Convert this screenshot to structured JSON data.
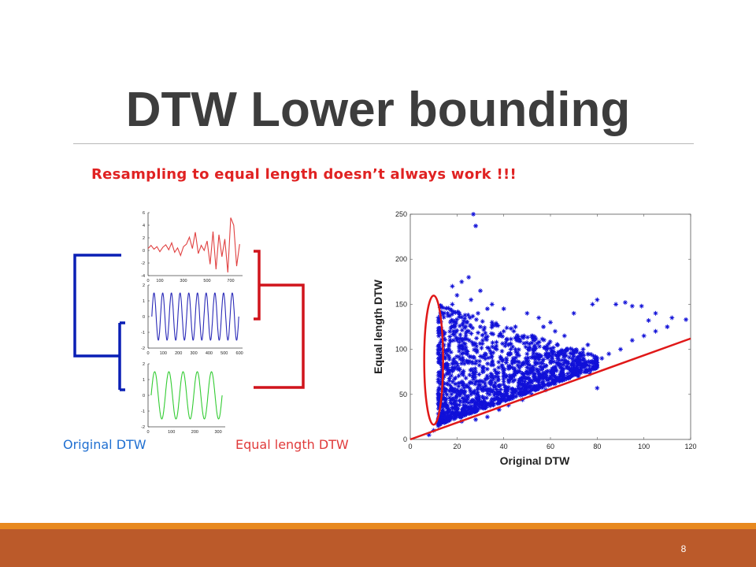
{
  "slide": {
    "title": "DTW Lower bounding",
    "subtitle": "Resampling to equal length doesn’t always work !!!",
    "page_number": "8"
  },
  "dendrogram": {
    "left_label": "Original DTW",
    "right_label": "Equal length DTW",
    "colors": {
      "left": "#0a1fb5",
      "right": "#d0141c"
    }
  },
  "chart_data": [
    {
      "type": "line",
      "color": "#e04040",
      "x_ticks": [
        "0",
        "100",
        "300",
        "500",
        "700"
      ],
      "y_ticks": [
        "6",
        "4",
        "2",
        "0",
        "-2",
        "-4"
      ],
      "xlim": [
        0,
        800
      ],
      "ylim": [
        -4,
        6
      ],
      "x": [
        0,
        25,
        50,
        75,
        100,
        125,
        150,
        175,
        200,
        225,
        250,
        275,
        300,
        325,
        350,
        375,
        400,
        425,
        450,
        475,
        500,
        525,
        550,
        575,
        600,
        625,
        650,
        675,
        700,
        725,
        750,
        775
      ],
      "y": [
        0.3,
        0.8,
        0.2,
        0.6,
        -0.2,
        0.5,
        0.9,
        0.1,
        1.2,
        -0.3,
        0.4,
        -0.8,
        0.6,
        1.0,
        2.1,
        0.3,
        2.9,
        -0.5,
        0.8,
        0.0,
        1.5,
        -2.2,
        3.0,
        -3.0,
        2.5,
        -1.0,
        1.8,
        -3.5,
        5.2,
        4.0,
        -2.5,
        1.0
      ]
    },
    {
      "type": "line",
      "color": "#2a2ab8",
      "x_ticks": [
        "0",
        "100",
        "200",
        "300",
        "400",
        "500",
        "600"
      ],
      "y_ticks": [
        "2",
        "1",
        "0",
        "-1",
        "-2"
      ],
      "xlim": [
        0,
        620
      ],
      "ylim": [
        -2,
        2
      ],
      "waveform": {
        "kind": "sine",
        "amplitude": 1.5,
        "cycles": 10
      }
    },
    {
      "type": "line",
      "color": "#33cc33",
      "x_ticks": [
        "0",
        "100",
        "200",
        "300"
      ],
      "y_ticks": [
        "2",
        "1",
        "0",
        "-1",
        "-2"
      ],
      "xlim": [
        0,
        330
      ],
      "ylim": [
        -2,
        2
      ],
      "waveform": {
        "kind": "sine",
        "amplitude": 1.5,
        "cycles": 5
      }
    },
    {
      "type": "scatter",
      "xlabel": "Original DTW",
      "ylabel": "Equal length DTW",
      "xlim": [
        0,
        120
      ],
      "ylim": [
        0,
        250
      ],
      "x_ticks": [
        0,
        20,
        40,
        60,
        80,
        100,
        120
      ],
      "y_ticks": [
        0,
        50,
        100,
        150,
        200,
        250
      ],
      "marker": "*",
      "marker_color": "#1010d8",
      "grid": false,
      "line": {
        "x": [
          0,
          120
        ],
        "y": [
          0,
          112
        ],
        "color": "#e01818"
      },
      "highlight_ellipse": {
        "center": [
          10,
          88
        ],
        "color": "#e01818"
      },
      "points": [
        [
          27,
          250
        ],
        [
          28,
          237
        ],
        [
          8,
          5
        ],
        [
          10,
          10
        ],
        [
          12,
          15
        ],
        [
          15,
          25
        ],
        [
          18,
          30
        ],
        [
          20,
          28
        ],
        [
          25,
          35
        ],
        [
          30,
          40
        ],
        [
          35,
          45
        ],
        [
          40,
          50
        ],
        [
          45,
          55
        ],
        [
          50,
          60
        ],
        [
          55,
          65
        ],
        [
          60,
          70
        ],
        [
          65,
          75
        ],
        [
          70,
          80
        ],
        [
          75,
          82
        ],
        [
          80,
          85
        ],
        [
          82,
          90
        ],
        [
          85,
          95
        ],
        [
          90,
          100
        ],
        [
          95,
          110
        ],
        [
          100,
          115
        ],
        [
          105,
          120
        ],
        [
          110,
          125
        ],
        [
          118,
          133
        ],
        [
          22,
          175
        ],
        [
          25,
          180
        ],
        [
          18,
          170
        ],
        [
          30,
          165
        ],
        [
          20,
          160
        ],
        [
          26,
          155
        ],
        [
          35,
          150
        ],
        [
          40,
          145
        ],
        [
          50,
          140
        ],
        [
          55,
          135
        ],
        [
          60,
          130
        ],
        [
          70,
          140
        ],
        [
          78,
          150
        ],
        [
          80,
          155
        ],
        [
          88,
          150
        ],
        [
          92,
          152
        ],
        [
          95,
          148
        ],
        [
          102,
          132
        ],
        [
          99,
          148
        ],
        [
          105,
          140
        ],
        [
          112,
          135
        ],
        [
          12,
          135
        ],
        [
          14,
          120
        ],
        [
          16,
          140
        ],
        [
          18,
          150
        ],
        [
          13,
          100
        ],
        [
          15,
          90
        ],
        [
          16,
          80
        ],
        [
          17,
          60
        ],
        [
          12,
          40
        ],
        [
          14,
          30
        ],
        [
          22,
          20
        ],
        [
          28,
          22
        ],
        [
          33,
          25
        ],
        [
          38,
          33
        ],
        [
          42,
          38
        ],
        [
          48,
          44
        ],
        [
          52,
          50
        ],
        [
          58,
          55
        ],
        [
          62,
          62
        ],
        [
          68,
          68
        ],
        [
          72,
          70
        ],
        [
          77,
          73
        ],
        [
          80,
          57
        ],
        [
          45,
          100
        ],
        [
          50,
          95
        ],
        [
          55,
          90
        ],
        [
          60,
          85
        ],
        [
          65,
          88
        ],
        [
          70,
          92
        ],
        [
          40,
          120
        ],
        [
          45,
          125
        ],
        [
          35,
          130
        ],
        [
          30,
          125
        ],
        [
          25,
          120
        ],
        [
          20,
          110
        ],
        [
          22,
          95
        ],
        [
          25,
          85
        ],
        [
          28,
          75
        ],
        [
          30,
          65
        ],
        [
          33,
          55
        ],
        [
          36,
          60
        ],
        [
          40,
          70
        ],
        [
          43,
          80
        ],
        [
          46,
          75
        ],
        [
          50,
          80
        ],
        [
          54,
          78
        ],
        [
          58,
          82
        ],
        [
          62,
          78
        ],
        [
          66,
          85
        ],
        [
          70,
          95
        ],
        [
          74,
          100
        ],
        [
          76,
          105
        ],
        [
          66,
          115
        ],
        [
          62,
          120
        ],
        [
          57,
          125
        ],
        [
          52,
          115
        ],
        [
          47,
          110
        ],
        [
          42,
          105
        ],
        [
          37,
          100
        ],
        [
          32,
          95
        ],
        [
          27,
          105
        ],
        [
          24,
          130
        ],
        [
          21,
          140
        ],
        [
          19,
          125
        ],
        [
          17,
          110
        ],
        [
          31,
          110
        ],
        [
          29,
          140
        ],
        [
          33,
          145
        ],
        [
          38,
          115
        ],
        [
          44,
          90
        ],
        [
          48,
          65
        ],
        [
          53,
          70
        ],
        [
          57,
          72
        ],
        [
          61,
          74
        ],
        [
          65,
          72
        ],
        [
          69,
          76
        ],
        [
          73,
          80
        ],
        [
          26,
          50
        ],
        [
          23,
          45
        ],
        [
          19,
          40
        ],
        [
          16,
          35
        ],
        [
          20,
          55
        ],
        [
          24,
          60
        ],
        [
          27,
          70
        ],
        [
          31,
          80
        ],
        [
          35,
          85
        ],
        [
          39,
          90
        ],
        [
          43,
          95
        ]
      ]
    }
  ]
}
